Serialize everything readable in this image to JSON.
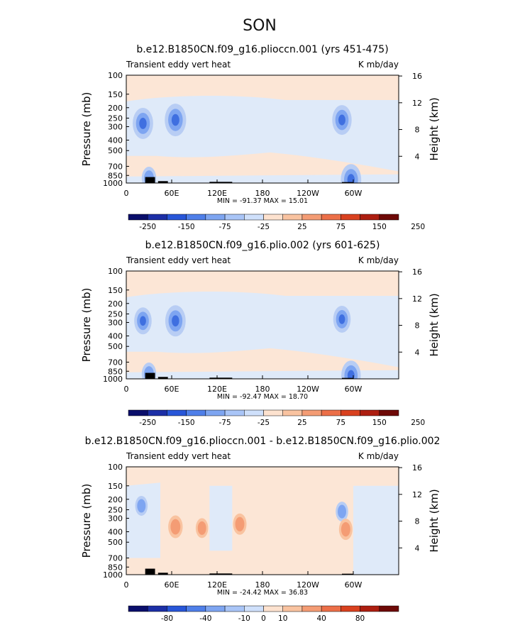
{
  "season": "SON",
  "chart_data": [
    {
      "type": "heatmap",
      "title": "b.e12.B1850CN.f09_g16.plioccn.001 (yrs 451-475)",
      "subtitle_left": "Transient eddy vert heat",
      "subtitle_right": "K mb/day",
      "ylabel": "Pressure (mb)",
      "ylabel_right": "Height (km)",
      "x_ticks": [
        "0",
        "60E",
        "120E",
        "180",
        "120W",
        "60W"
      ],
      "x_tick_lon": [
        0,
        60,
        120,
        180,
        240,
        300
      ],
      "xlim": [
        0,
        360
      ],
      "y_ticks": [
        "100",
        "150",
        "200",
        "250",
        "300",
        "400",
        "500",
        "700",
        "850",
        "1000"
      ],
      "y_tick_p": [
        100,
        150,
        200,
        250,
        300,
        400,
        500,
        700,
        850,
        1000
      ],
      "ylim": [
        1000,
        100
      ],
      "height_ticks": [
        "4",
        "8",
        "12",
        "16"
      ],
      "height_tick_km": [
        4,
        8,
        12,
        16
      ],
      "stats": "MIN = -91.37   MAX =  15.01",
      "min": -91.37,
      "max": 15.01,
      "colorbar_labels": [
        "-250",
        "-150",
        "-75",
        "-25",
        "25",
        "75",
        "150",
        "250"
      ],
      "features": [
        {
          "lon": 22,
          "p": 280,
          "value": -60
        },
        {
          "lon": 65,
          "p": 260,
          "value": -65
        },
        {
          "lon": 285,
          "p": 260,
          "value": -55
        },
        {
          "lon": 30,
          "p": 900,
          "value": -30
        },
        {
          "lon": 297,
          "p": 930,
          "value": -60
        }
      ]
    },
    {
      "type": "heatmap",
      "title": "b.e12.B1850CN.f09_g16.plio.002 (yrs 601-625)",
      "subtitle_left": "Transient eddy vert heat",
      "subtitle_right": "K mb/day",
      "ylabel": "Pressure (mb)",
      "ylabel_right": "Height (km)",
      "x_ticks": [
        "0",
        "60E",
        "120E",
        "180",
        "120W",
        "60W"
      ],
      "x_tick_lon": [
        0,
        60,
        120,
        180,
        240,
        300
      ],
      "xlim": [
        0,
        360
      ],
      "y_ticks": [
        "100",
        "150",
        "200",
        "250",
        "300",
        "400",
        "500",
        "700",
        "850",
        "1000"
      ],
      "y_tick_p": [
        100,
        150,
        200,
        250,
        300,
        400,
        500,
        700,
        850,
        1000
      ],
      "ylim": [
        1000,
        100
      ],
      "height_ticks": [
        "4",
        "8",
        "12",
        "16"
      ],
      "height_tick_km": [
        4,
        8,
        12,
        16
      ],
      "stats": "MIN = -92.47   MAX =  18.70",
      "min": -92.47,
      "max": 18.7,
      "colorbar_labels": [
        "-250",
        "-150",
        "-75",
        "-25",
        "25",
        "75",
        "150",
        "250"
      ],
      "features": [
        {
          "lon": 22,
          "p": 290,
          "value": -45
        },
        {
          "lon": 65,
          "p": 290,
          "value": -60
        },
        {
          "lon": 285,
          "p": 280,
          "value": -45
        },
        {
          "lon": 30,
          "p": 900,
          "value": -30
        },
        {
          "lon": 297,
          "p": 930,
          "value": -55
        }
      ]
    },
    {
      "type": "heatmap",
      "title": "b.e12.B1850CN.f09_g16.plioccn.001 - b.e12.B1850CN.f09_g16.plio.002",
      "subtitle_left": "Transient eddy vert heat",
      "subtitle_right": "K mb/day",
      "ylabel": "Pressure (mb)",
      "ylabel_right": "Height (km)",
      "x_ticks": [
        "0",
        "60E",
        "120E",
        "180",
        "120W",
        "60W"
      ],
      "x_tick_lon": [
        0,
        60,
        120,
        180,
        240,
        300
      ],
      "xlim": [
        0,
        360
      ],
      "y_ticks": [
        "100",
        "150",
        "200",
        "250",
        "300",
        "400",
        "500",
        "700",
        "850",
        "1000"
      ],
      "y_tick_p": [
        100,
        150,
        200,
        250,
        300,
        400,
        500,
        700,
        850,
        1000
      ],
      "ylim": [
        1000,
        100
      ],
      "height_ticks": [
        "4",
        "8",
        "12",
        "16"
      ],
      "height_tick_km": [
        4,
        8,
        12,
        16
      ],
      "stats": "MIN = -24.42   MAX =  36.83",
      "min": -24.42,
      "max": 36.83,
      "colorbar_labels": [
        "-80",
        "-40",
        "-10",
        "0",
        "10",
        "40",
        "80"
      ],
      "features": [
        {
          "lon": 20,
          "p": 230,
          "value": -20
        },
        {
          "lon": 65,
          "p": 360,
          "value": 30
        },
        {
          "lon": 100,
          "p": 370,
          "value": 20
        },
        {
          "lon": 150,
          "p": 340,
          "value": 25
        },
        {
          "lon": 285,
          "p": 260,
          "value": -20
        },
        {
          "lon": 290,
          "p": 380,
          "value": 25
        }
      ]
    }
  ],
  "colorbar_colors": [
    "#0a0e6b",
    "#1c2fa6",
    "#2856d8",
    "#4f7fe9",
    "#7ea5f1",
    "#a9c5f7",
    "#cfe0fb",
    "#fde2cf",
    "#f9c3a0",
    "#f49c74",
    "#ec6f48",
    "#d9411f",
    "#ad1e10",
    "#6e0907"
  ],
  "field_colors": {
    "positive_bg": "#fce6d6",
    "negative_bg": "#dfeaf9",
    "blue_mid": "#b8cdf4",
    "blue_core": "#7ea5f1",
    "blue_deep": "#3f6fe0",
    "red_mid": "#f9c3a0",
    "red_core": "#f49c74",
    "red_deep": "#ec6f48",
    "topography": "#000000"
  }
}
